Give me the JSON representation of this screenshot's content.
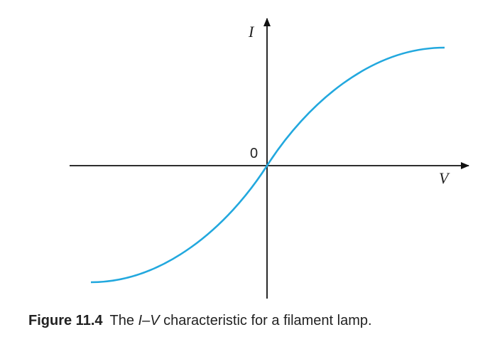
{
  "axes": {
    "y_label": "I",
    "x_label": "V",
    "origin_label": "0"
  },
  "caption": {
    "figure_number": "Figure 11.4",
    "text_prefix": "The ",
    "iv": "I–V",
    "text_suffix": " characteristic for a filament lamp."
  },
  "colors": {
    "curve": "#22a8de",
    "axis": "#111111"
  }
}
